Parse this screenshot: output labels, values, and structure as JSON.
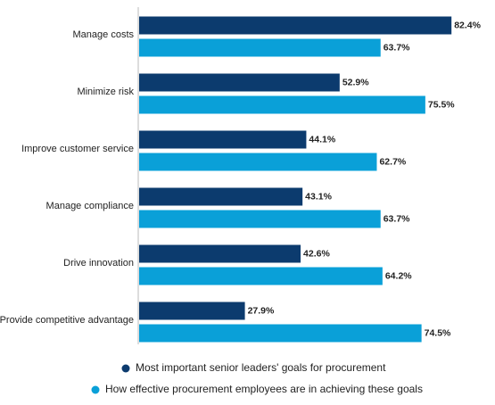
{
  "chart_data": {
    "type": "bar",
    "orientation": "horizontal",
    "categories": [
      "Manage costs",
      "Minimize risk",
      "Improve customer service",
      "Manage compliance",
      "Drive innovation",
      "Provide competitive advantage"
    ],
    "series": [
      {
        "name": "Most important senior leaders' goals for procurement",
        "color": "#0c3b6e",
        "values": [
          82.4,
          52.9,
          44.1,
          43.1,
          42.6,
          27.9
        ],
        "value_labels": [
          "82.4%",
          "52.9%",
          "44.1%",
          "43.1%",
          "42.6%",
          "27.9%"
        ]
      },
      {
        "name": "How effective procurement employees are in achieving these goals",
        "color": "#0aa0d8",
        "values": [
          63.7,
          75.5,
          62.7,
          63.7,
          64.2,
          74.5
        ],
        "value_labels": [
          "63.7%",
          "75.5%",
          "62.7%",
          "63.7%",
          "64.2%",
          "74.5%"
        ]
      }
    ]
  }
}
